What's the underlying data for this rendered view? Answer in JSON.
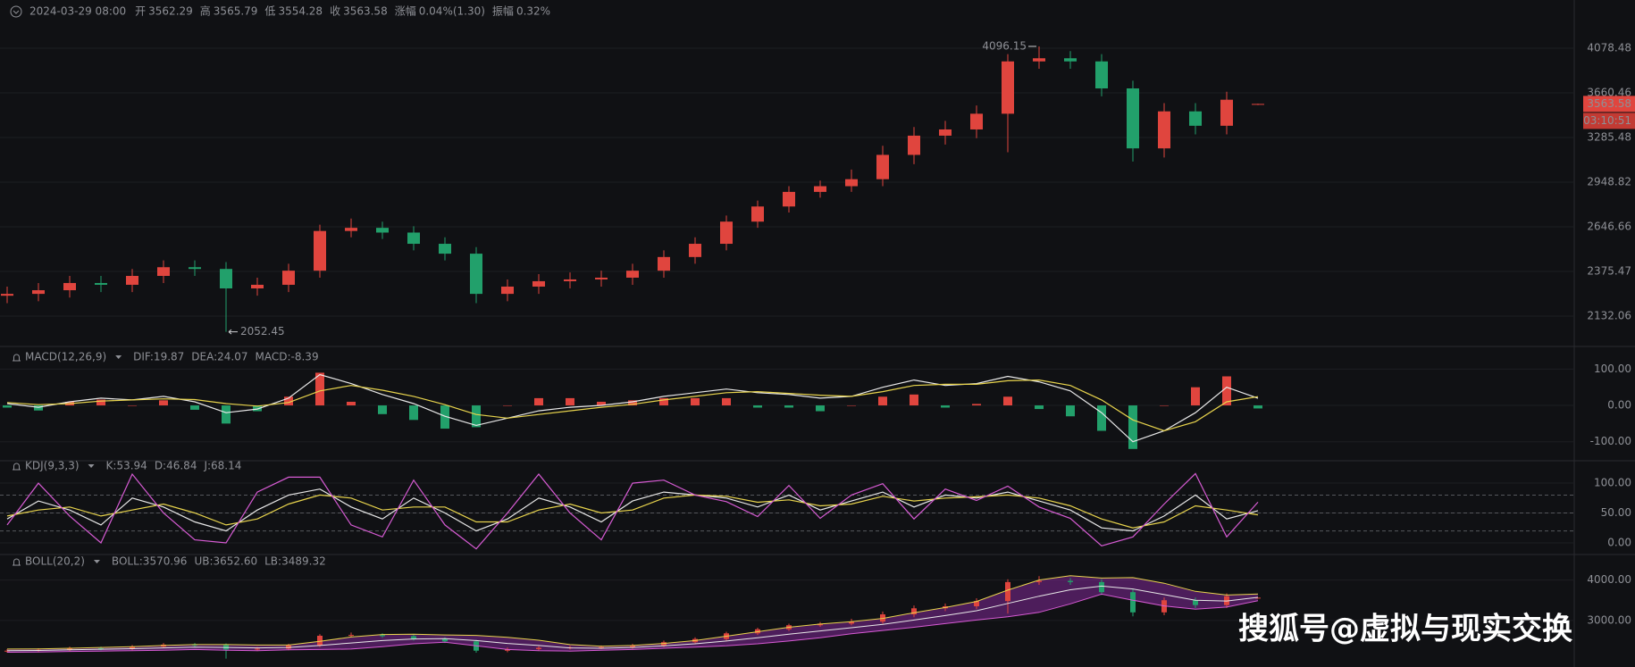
{
  "header": {
    "datetime": "2024-03-29 08:00",
    "items": [
      {
        "label": "开"
      },
      {
        "label": "高"
      },
      {
        "label": "低"
      },
      {
        "label": "收"
      },
      {
        "label": "涨幅",
        "value": "0.04%(1.30)"
      },
      {
        "label": "振幅",
        "value": "0.32%"
      }
    ]
  },
  "watermark": "搜狐号@虚拟与现实交换",
  "chart_data": [
    {
      "type": "candlestick",
      "log": true,
      "grid": true,
      "ylim": [
        1994,
        4389
      ],
      "yticks": [
        4078.48,
        3660.46,
        3285.48,
        2948.82,
        2646.66,
        2375.47,
        2132.06
      ],
      "up_color": "#e0453e",
      "down_color": "#22a06b",
      "countdown": "03:10:51",
      "open": [
        2240,
        2250,
        2270,
        2310,
        2300,
        2350,
        2400,
        2390,
        2280,
        2300,
        2380,
        2620,
        2640,
        2610,
        2540,
        2480,
        2250,
        2290,
        2320,
        2330,
        2340,
        2380,
        2460,
        2540,
        2680,
        2780,
        2880,
        2920,
        2970,
        3150,
        3300,
        3350,
        3480,
        3950,
        3980,
        3950,
        3700,
        3200,
        3500,
        3380,
        3562.29
      ],
      "high": [
        2290,
        2310,
        2350,
        2350,
        2390,
        2440,
        2440,
        2430,
        2340,
        2420,
        2660,
        2700,
        2680,
        2650,
        2580,
        2520,
        2330,
        2360,
        2370,
        2380,
        2420,
        2500,
        2580,
        2720,
        2820,
        2920,
        2960,
        3040,
        3220,
        3370,
        3420,
        3550,
        4020,
        4096.15,
        4050,
        4020,
        3770,
        3570,
        3570,
        3670,
        3565.79
      ],
      "low": [
        2200,
        2210,
        2230,
        2260,
        2260,
        2310,
        2350,
        2052.45,
        2240,
        2260,
        2340,
        2580,
        2570,
        2500,
        2440,
        2200,
        2210,
        2250,
        2280,
        2290,
        2300,
        2340,
        2420,
        2500,
        2640,
        2740,
        2840,
        2880,
        2920,
        3080,
        3230,
        3280,
        3170,
        3880,
        3880,
        3630,
        3100,
        3130,
        3310,
        3310,
        3554.28
      ],
      "close": [
        2250,
        2270,
        2310,
        2300,
        2350,
        2400,
        2390,
        2280,
        2300,
        2380,
        2620,
        2640,
        2610,
        2540,
        2480,
        2250,
        2290,
        2320,
        2330,
        2340,
        2380,
        2460,
        2540,
        2680,
        2780,
        2880,
        2920,
        2970,
        3150,
        3300,
        3350,
        3480,
        3950,
        3980,
        3950,
        3700,
        3200,
        3500,
        3380,
        3600,
        3563.58
      ]
    },
    {
      "type": "combo",
      "title": "MACD(12,26,9)",
      "grid": true,
      "ylim": [
        -145,
        155
      ],
      "yticks": [
        {
          "value": 100,
          "label": "100.00"
        },
        {
          "value": 0,
          "label": "0.00"
        },
        {
          "value": -100,
          "label": "-100.00"
        }
      ],
      "up_color": "#e0453e",
      "down_color": "#22a06b",
      "series": [
        {
          "name": "DIF:19.87",
          "color": "#e8e8e8",
          "style": "line",
          "values": [
            5,
            -5,
            10,
            20,
            15,
            25,
            10,
            -20,
            -10,
            20,
            85,
            60,
            30,
            5,
            -30,
            -55,
            -35,
            -15,
            -5,
            0,
            10,
            25,
            35,
            45,
            35,
            30,
            20,
            25,
            50,
            70,
            55,
            60,
            80,
            65,
            40,
            -20,
            -100,
            -70,
            -20,
            50,
            19.87
          ]
        },
        {
          "name": "DEA:24.07",
          "color": "#e8d44d",
          "style": "line",
          "values": [
            8,
            2,
            5,
            12,
            15,
            18,
            16,
            5,
            -2,
            8,
            40,
            55,
            42,
            25,
            2,
            -25,
            -35,
            -25,
            -15,
            -5,
            3,
            15,
            25,
            35,
            38,
            33,
            28,
            25,
            38,
            55,
            58,
            58,
            68,
            70,
            55,
            15,
            -40,
            -70,
            -45,
            10,
            24.07
          ]
        },
        {
          "name": "MACD:-8.39",
          "color": "#2fb37c",
          "style": "histogram",
          "values": [
            -6,
            -14,
            10,
            16,
            0,
            14,
            -12,
            -50,
            -16,
            24,
            90,
            10,
            -24,
            -40,
            -64,
            -60,
            0,
            20,
            20,
            10,
            14,
            20,
            20,
            20,
            -6,
            -6,
            -16,
            0,
            24,
            30,
            -6,
            4,
            24,
            -10,
            -30,
            -70,
            -120,
            0,
            50,
            80,
            -8.39
          ]
        }
      ]
    },
    {
      "type": "line",
      "title": "KDJ(9,3,3)",
      "grid": true,
      "ylim": [
        -15,
        124
      ],
      "yticks": [
        {
          "value": 100,
          "label": "100.00"
        },
        {
          "value": 50,
          "label": "50.00"
        },
        {
          "value": 0,
          "label": "0.00"
        }
      ],
      "ref_lines": [
        80,
        50,
        20
      ],
      "series": [
        {
          "name": "K:53.94",
          "color": "#e8e8e8",
          "values": [
            40,
            70,
            55,
            30,
            75,
            60,
            35,
            20,
            55,
            80,
            90,
            60,
            40,
            75,
            50,
            20,
            40,
            75,
            60,
            35,
            70,
            85,
            80,
            75,
            60,
            80,
            55,
            70,
            85,
            60,
            80,
            75,
            85,
            70,
            55,
            25,
            20,
            45,
            80,
            40,
            53.94
          ]
        },
        {
          "name": "D:46.84",
          "color": "#e8d44d",
          "values": [
            45,
            55,
            60,
            45,
            55,
            65,
            50,
            30,
            40,
            65,
            80,
            75,
            55,
            60,
            60,
            35,
            35,
            55,
            65,
            50,
            55,
            75,
            80,
            78,
            68,
            72,
            62,
            65,
            78,
            70,
            75,
            77,
            80,
            75,
            62,
            40,
            25,
            35,
            62,
            55,
            46.84
          ]
        },
        {
          "name": "J:68.14",
          "color": "#d65bd3",
          "values": [
            30,
            100,
            45,
            0,
            115,
            50,
            5,
            0,
            85,
            110,
            110,
            30,
            10,
            105,
            30,
            -10,
            50,
            115,
            50,
            5,
            100,
            105,
            80,
            69,
            44,
            96,
            41,
            80,
            99,
            40,
            90,
            71,
            95,
            60,
            41,
            -5,
            10,
            65,
            116,
            10,
            68.14
          ]
        }
      ]
    },
    {
      "type": "band",
      "title": "BOLL(20,2)",
      "grid": true,
      "ylim": [
        1890,
        4390
      ],
      "yticks": [
        {
          "value": 4000,
          "label": "4000.00"
        },
        {
          "value": 3000,
          "label": "3000.00"
        }
      ],
      "fill": "rgba(128,40,150,0.55)",
      "series": [
        {
          "name": "BOLL:3570.96",
          "color": "#e8e8e8",
          "values": [
            2250,
            2255,
            2270,
            2285,
            2300,
            2320,
            2340,
            2330,
            2320,
            2330,
            2380,
            2440,
            2500,
            2540,
            2550,
            2500,
            2430,
            2380,
            2320,
            2310,
            2330,
            2370,
            2420,
            2490,
            2570,
            2660,
            2740,
            2820,
            2900,
            3010,
            3120,
            3240,
            3420,
            3600,
            3760,
            3850,
            3780,
            3640,
            3500,
            3480,
            3570.96
          ]
        },
        {
          "name": "UB:3652.60",
          "color": "#e8d44d",
          "values": [
            2290,
            2295,
            2310,
            2330,
            2350,
            2380,
            2400,
            2400,
            2390,
            2390,
            2480,
            2590,
            2650,
            2660,
            2640,
            2630,
            2580,
            2510,
            2400,
            2360,
            2380,
            2430,
            2500,
            2610,
            2720,
            2830,
            2910,
            2970,
            3050,
            3190,
            3320,
            3470,
            3750,
            4000,
            4110,
            4050,
            4060,
            3920,
            3720,
            3630,
            3652.6
          ]
        },
        {
          "name": "LB:3489.32",
          "color": "#d65bd3",
          "values": [
            2210,
            2215,
            2230,
            2240,
            2250,
            2260,
            2280,
            2260,
            2250,
            2270,
            2280,
            2290,
            2350,
            2420,
            2460,
            2370,
            2280,
            2250,
            2240,
            2260,
            2280,
            2310,
            2340,
            2370,
            2420,
            2490,
            2570,
            2670,
            2750,
            2830,
            2920,
            3010,
            3090,
            3200,
            3410,
            3650,
            3500,
            3360,
            3280,
            3330,
            3489.32
          ]
        }
      ]
    }
  ]
}
